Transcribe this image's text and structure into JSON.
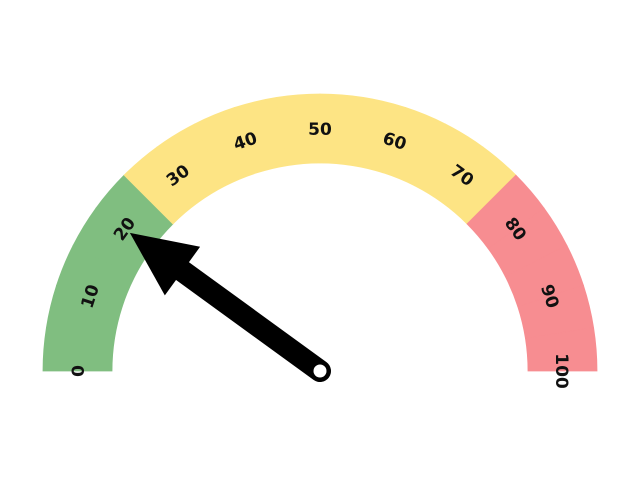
{
  "chart_data": {
    "type": "gauge",
    "min": 0,
    "max": 100,
    "value": 20,
    "tick_labels": [
      "0",
      "10",
      "20",
      "30",
      "40",
      "50",
      "60",
      "70",
      "80",
      "90",
      "100"
    ],
    "tick_values": [
      0,
      10,
      20,
      30,
      40,
      50,
      60,
      70,
      80,
      90,
      100
    ],
    "bands": [
      {
        "from": 0,
        "to": 25,
        "color": "#80be80"
      },
      {
        "from": 25,
        "to": 75,
        "color": "#fde484"
      },
      {
        "from": 75,
        "to": 100,
        "color": "#f78d91"
      }
    ],
    "needle_color": "#000000",
    "hub_color": "#ffffff"
  }
}
